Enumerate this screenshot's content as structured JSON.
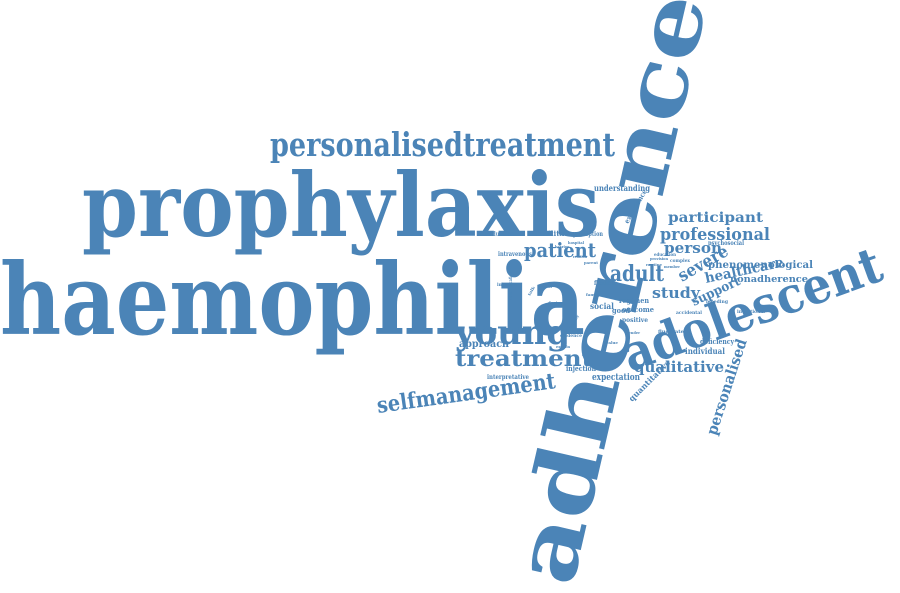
{
  "style": {
    "word_color": "#4b84b7",
    "background": "#ffffff"
  },
  "words": [
    {
      "id": "adherence",
      "text": "adherence"
    },
    {
      "id": "haemophilia",
      "text": "haemophilia"
    },
    {
      "id": "prophylaxis",
      "text": "prophylaxis"
    },
    {
      "id": "personalisedtreatment",
      "text": "personalisedtreatment"
    },
    {
      "id": "adolescent",
      "text": "adolescent"
    },
    {
      "id": "young",
      "text": "young"
    },
    {
      "id": "treatment",
      "text": "treatment"
    },
    {
      "id": "selfmanagement",
      "text": "selfmanagement"
    },
    {
      "id": "patient",
      "text": "patient"
    },
    {
      "id": "adult",
      "text": "adult"
    },
    {
      "id": "professional",
      "text": "professional"
    },
    {
      "id": "participant",
      "text": "participant"
    },
    {
      "id": "person",
      "text": "person"
    },
    {
      "id": "severe",
      "text": "severe"
    },
    {
      "id": "study",
      "text": "study"
    },
    {
      "id": "healthcare",
      "text": "healthcare"
    },
    {
      "id": "support",
      "text": "support"
    },
    {
      "id": "qualitative",
      "text": "qualitative"
    },
    {
      "id": "personalised",
      "text": "personalised"
    },
    {
      "id": "phenomenological",
      "text": "phenomenological"
    },
    {
      "id": "nonadherence",
      "text": "nonadherence"
    },
    {
      "id": "understanding",
      "text": "understanding"
    },
    {
      "id": "experience",
      "text": "experience"
    },
    {
      "id": "approach",
      "text": "approach"
    },
    {
      "id": "facilitator",
      "text": "facilitator"
    },
    {
      "id": "introduction",
      "text": "introduction"
    },
    {
      "id": "perception",
      "text": "perception"
    },
    {
      "id": "intravenous",
      "text": "intravenous"
    },
    {
      "id": "interview",
      "text": "interview"
    },
    {
      "id": "individual",
      "text": "individual"
    },
    {
      "id": "deficiency",
      "text": "deficiency"
    },
    {
      "id": "expectation",
      "text": "expectation"
    },
    {
      "id": "quantitative",
      "text": "quantitative"
    },
    {
      "id": "interpretative",
      "text": "interpretative"
    },
    {
      "id": "injection",
      "text": "injection"
    },
    {
      "id": "regimen",
      "text": "regimen"
    },
    {
      "id": "outcome",
      "text": "outcome"
    },
    {
      "id": "positive",
      "text": "positive"
    },
    {
      "id": "social",
      "text": "social"
    },
    {
      "id": "good",
      "text": "good"
    },
    {
      "id": "flexible",
      "text": "flexible"
    },
    {
      "id": "psychosocial",
      "text": "psychosocial"
    },
    {
      "id": "education",
      "text": "education"
    },
    {
      "id": "intentional",
      "text": "intentional"
    },
    {
      "id": "bleeding",
      "text": "bleeding"
    },
    {
      "id": "fluctuate",
      "text": "fluctuate"
    },
    {
      "id": "evidence",
      "text": "evidence"
    },
    {
      "id": "accidental",
      "text": "accidental"
    },
    {
      "id": "complex",
      "text": "complex"
    },
    {
      "id": "barrier",
      "text": "barrier"
    },
    {
      "id": "hospital",
      "text": "hospital"
    },
    {
      "id": "parent",
      "text": "parent"
    },
    {
      "id": "relation",
      "text": "relation"
    },
    {
      "id": "communication",
      "text": "communication"
    },
    {
      "id": "provision",
      "text": "provision"
    },
    {
      "id": "routine",
      "text": "routine"
    },
    {
      "id": "member",
      "text": "member"
    },
    {
      "id": "family",
      "text": "family"
    },
    {
      "id": "school",
      "text": "school"
    },
    {
      "id": "talk",
      "text": "talk"
    },
    {
      "id": "doctor",
      "text": "doctor"
    },
    {
      "id": "value",
      "text": "value"
    },
    {
      "id": "gender",
      "text": "gender"
    },
    {
      "id": "explain",
      "text": "explain"
    },
    {
      "id": "identity",
      "text": "identity"
    }
  ]
}
